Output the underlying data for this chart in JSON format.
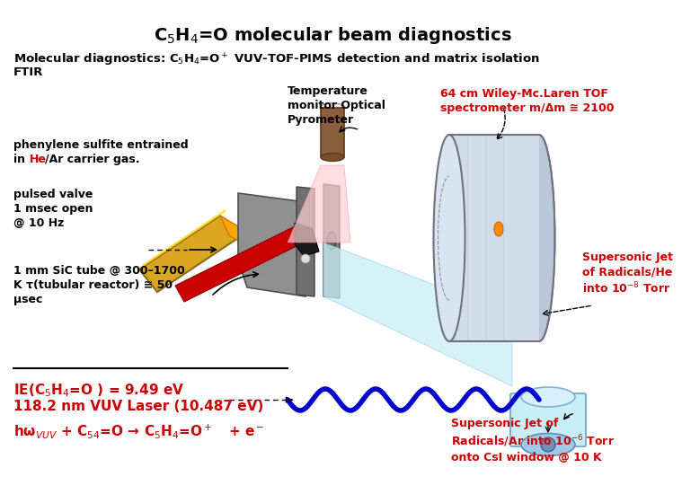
{
  "title": "C$_5$H$_4$=O molecular beam diagnostics",
  "title_fontsize": 14,
  "title_fontweight": "bold",
  "bg_color": "#ffffff",
  "subtitle_line1": "Molecular diagnostics: C$_5$H$_4$=O$^+$ VUV-TOF-PIMS detection and matrix isolation",
  "subtitle_line2": "FTIR",
  "subtitle_color": "#000000",
  "subtitle_fontsize": 9.5,
  "subtitle_fontweight": "bold",
  "label_phenylene1": "phenylene sulfite entrained",
  "label_phenylene2": "in ",
  "label_phenylene3": "He",
  "label_phenylene4": "/Ar carrier gas.",
  "label_pulsed": "pulsed valve\n1 msec open\n@ 10 Hz",
  "label_1mm": "1 mm SiC tube @ 300–1700\nK τ(tubular reactor) ≅ 50\nμsec",
  "label_temp": "Temperature\nmonitor Optical\nPyrometer",
  "label_64cm": "64 cm Wiley-McLaren TOF\nspectrometer m/Δm ≅ 2100",
  "label_64cm_color": "#cc0000",
  "label_supersonic_he": "Supersonic Jet\nof Radicals/He\ninto 10$^{-8}$ Torr",
  "label_supersonic_he_color": "#cc0000",
  "label_ie": "IE(C$_5$H$_4$=O ) = 9.49 eV",
  "label_ie_color": "#cc0000",
  "label_118": "118.2 nm VUV Laser (10.487 eV)",
  "label_118_color": "#cc0000",
  "label_reaction": "hω$_{VUV}$ + C$_{54}$=O → C$_5$H$_4$=O$^+$   + e$^-$",
  "label_reaction_color": "#cc0000",
  "label_supersonic_ar": "Supersonic Jet of\nRadicals/Ar into 10$^{-6}$ Torr\nonto CsI window @ 10 K",
  "label_supersonic_ar_color": "#cc0000",
  "he_color": "#cc0000",
  "ar_color": "#000000"
}
